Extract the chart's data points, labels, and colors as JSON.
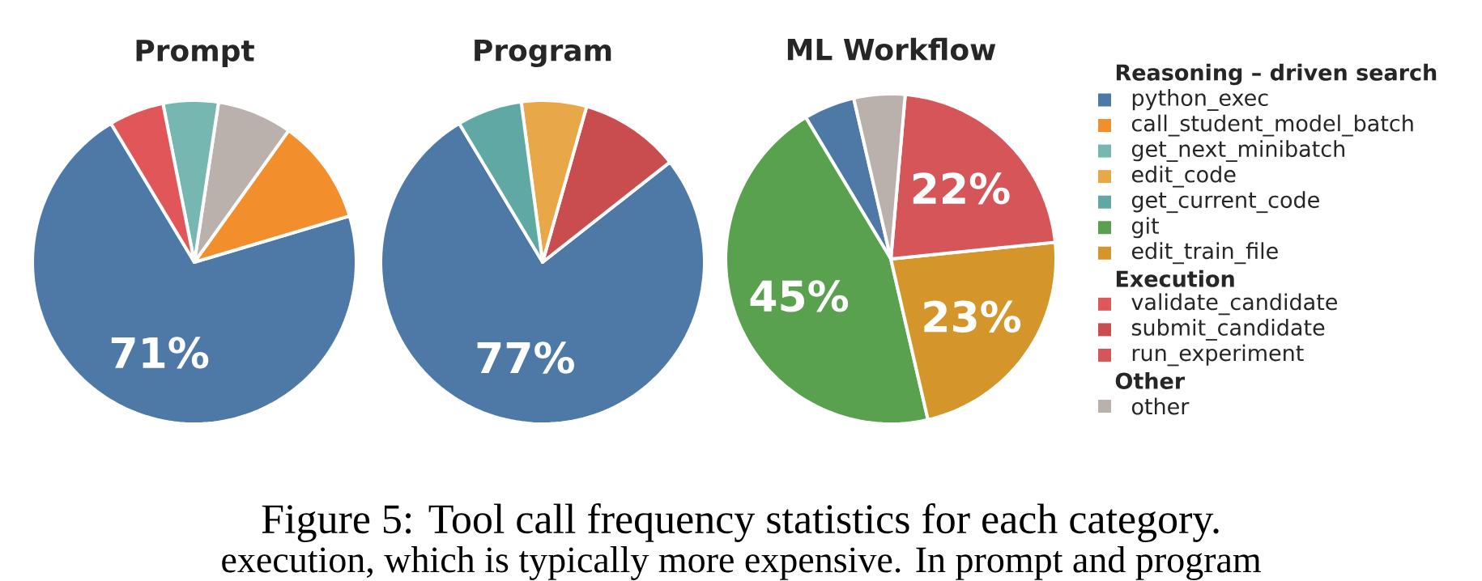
{
  "chart_data": [
    {
      "type": "pie",
      "title": "Prompt",
      "categories": [
        null,
        null,
        null,
        null,
        null
      ],
      "values": [
        71,
        10.5,
        7.5,
        5.5,
        5.5
      ],
      "colors": [
        "#4e79a7",
        "#f28e2b",
        "#bab0ac",
        "#76b7b2",
        "#e15759"
      ],
      "value_labels": [
        "71%",
        null,
        null,
        null,
        null
      ]
    },
    {
      "type": "pie",
      "title": "Program",
      "categories": [
        null,
        null,
        null,
        null
      ],
      "values": [
        77,
        10,
        6.5,
        6.5
      ],
      "colors": [
        "#4e79a7",
        "#c94c4f",
        "#e8a84a",
        "#5fa8a3"
      ],
      "value_labels": [
        "77%",
        null,
        null,
        null
      ]
    },
    {
      "type": "pie",
      "title": "ML Workflow",
      "categories": [
        null,
        null,
        null,
        null,
        null
      ],
      "values": [
        5,
        45,
        23,
        22,
        5
      ],
      "colors": [
        "#4e79a7",
        "#59a14f",
        "#d4962b",
        "#d65558",
        "#bab0ac"
      ],
      "value_labels": [
        null,
        "45%",
        "23%",
        "22%",
        null
      ]
    },
    {
      "type": "other",
      "categories": [
        "Reasoning – driven search",
        "python_exec",
        "call_student_model_batch",
        "get_next_minibatch",
        "edit_code",
        "get_current_code",
        "git",
        "edit_train_file",
        "Execution",
        "validate_candidate",
        "submit_candidate",
        "run_experiment",
        "Other",
        "other"
      ],
      "colors": [
        null,
        "#4e79a7",
        "#f28e2b",
        "#76b7b2",
        "#e8a84a",
        "#5fa8a3",
        "#59a14f",
        "#d4962b",
        null,
        "#e15759",
        "#c94c4f",
        "#d65558",
        null,
        "#bab0ac"
      ],
      "annotations": [
        "Figure 5: Tool call frequency statistics for each category.",
        "execution, which is typically more expensive. In prompt and program"
      ]
    }
  ]
}
